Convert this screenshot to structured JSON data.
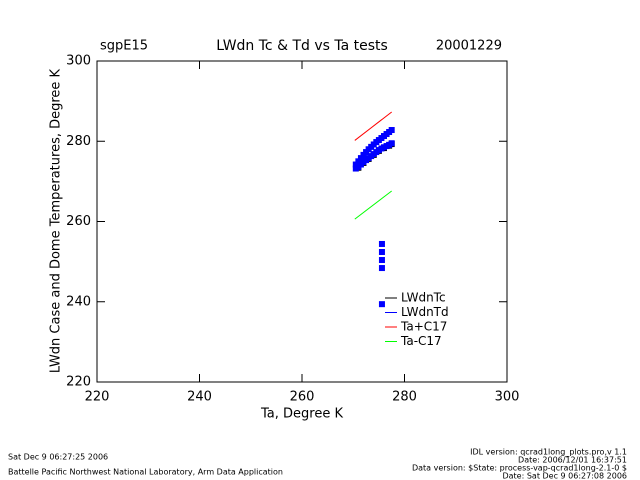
{
  "chart_data": {
    "type": "scatter",
    "site": "sgpE15",
    "title": "LWdn Tc & Td vs Ta tests",
    "date": "20001229",
    "x_label": "Ta, Degree K",
    "y_label": "LWdn Case and Dome Temperatures, Degree K",
    "xlim": [
      220,
      300
    ],
    "xticks": [
      220,
      240,
      260,
      280,
      300
    ],
    "ylim": [
      220,
      300
    ],
    "yticks": [
      220,
      240,
      260,
      280,
      300
    ],
    "series": [
      {
        "name": "LWdnTc",
        "color": "#000000",
        "mode": "markers",
        "x": [
          271,
          272,
          273,
          274,
          275,
          276,
          277,
          277.5
        ],
        "values": [
          273.4,
          274.6,
          275.6,
          276.6,
          277.6,
          278.3,
          278.9,
          279.3
        ]
      },
      {
        "name": "LWdnTd",
        "color": "#0000ff",
        "mode": "markers",
        "x": [
          270.5,
          271,
          271.5,
          272,
          272.5,
          273,
          273.5,
          274,
          274.5,
          275,
          275.5,
          276,
          276.5,
          277,
          277.5,
          270.5,
          271,
          271.5,
          272,
          272.5,
          273,
          273.5,
          274,
          274.5,
          275,
          275.5,
          276,
          276.5,
          277,
          277.5,
          275.6,
          275.6,
          275.6,
          275.6,
          275.6
        ],
        "values": [
          273.2,
          273.6,
          274.2,
          274.8,
          275.3,
          275.8,
          276.3,
          276.8,
          277.3,
          277.8,
          278.2,
          278.5,
          278.8,
          279.1,
          279.5,
          274.2,
          275,
          275.8,
          276.6,
          277.3,
          278,
          278.6,
          279.2,
          279.8,
          280.3,
          280.8,
          281.3,
          281.8,
          282.3,
          282.8,
          254.4,
          252.4,
          250.4,
          248.4,
          239.4
        ]
      },
      {
        "name": "Ta+C17",
        "color": "#ff0000",
        "mode": "line",
        "x": [
          270.3,
          277.5
        ],
        "values": [
          280.2,
          287.3
        ]
      },
      {
        "name": "Ta-C17",
        "color": "#00ff00",
        "mode": "line",
        "x": [
          270.3,
          277.5
        ],
        "values": [
          260.6,
          267.6
        ]
      }
    ]
  },
  "footer": {
    "left": [
      "Sat Dec  9 06:27:25 2006",
      "Battelle Pacific Northwest National Laboratory, Arm Data Application"
    ],
    "right": [
      "IDL version: qcrad1long_plots.pro,v 1.1",
      "Date: 2006/12/01 16:37:51",
      "Data version: $State: process-vap-qcrad1long-2.1-0 $",
      "Date: Sat Dec  9 06:27:08 2006"
    ]
  }
}
